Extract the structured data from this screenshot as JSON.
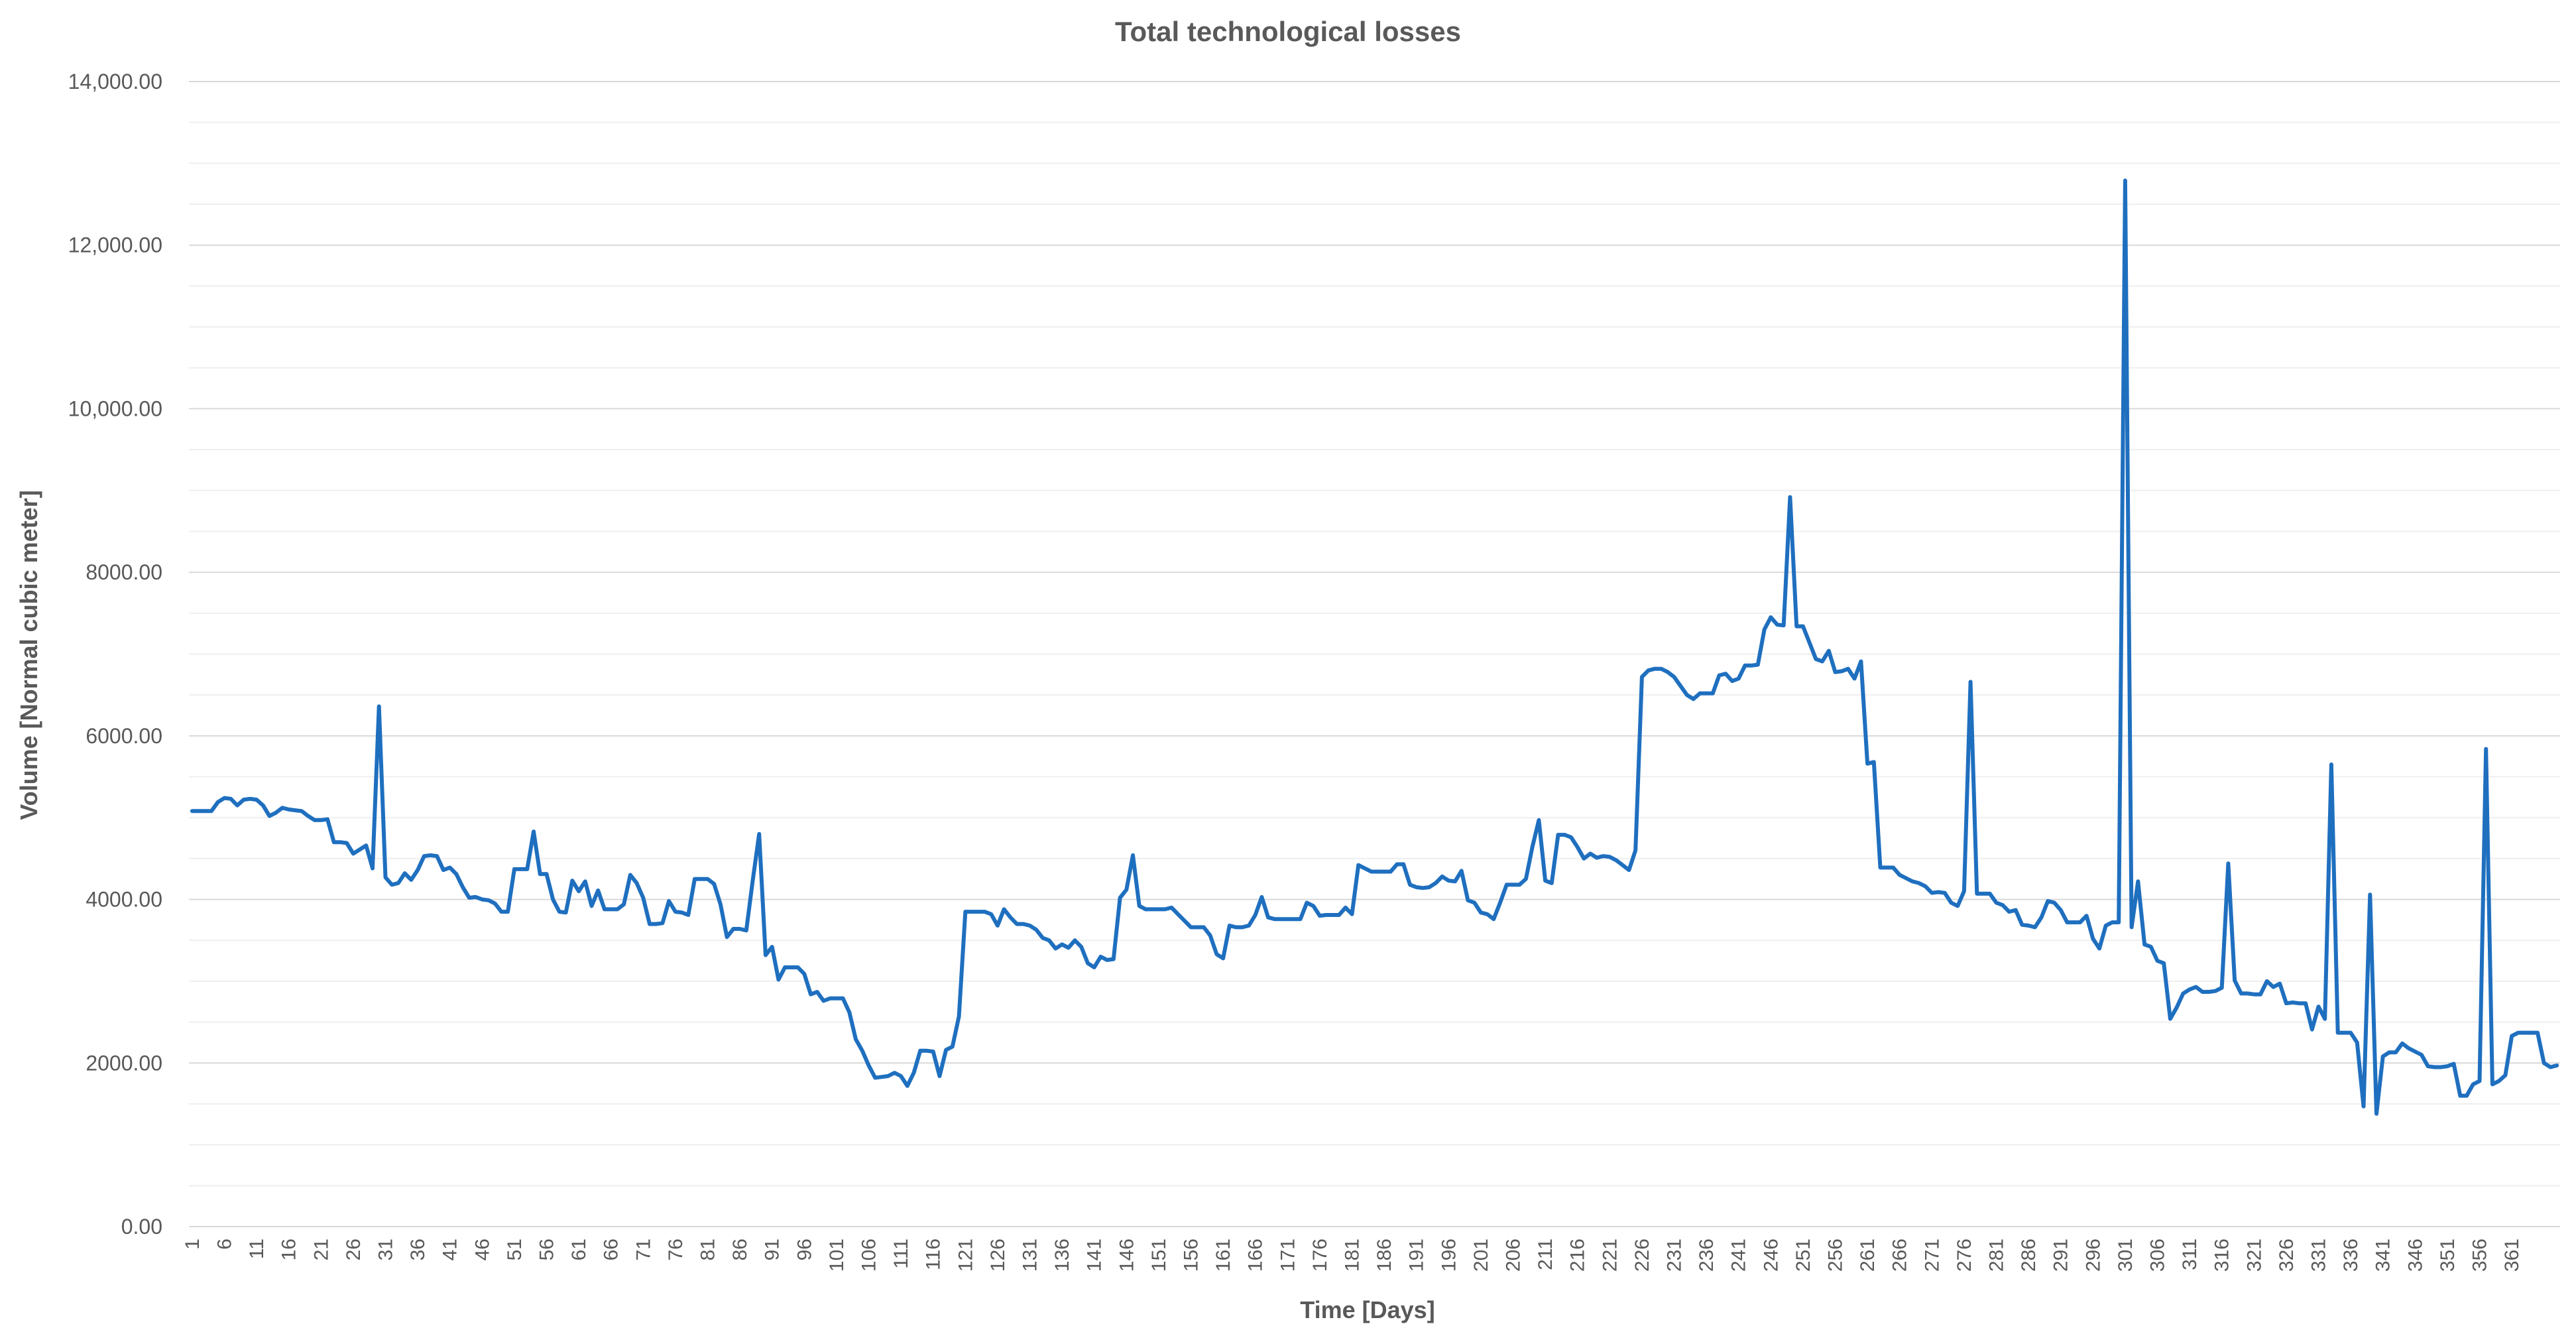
{
  "chart_data": {
    "type": "line",
    "title": "Total technological losses",
    "xlabel": "Time  [Days]",
    "ylabel": "Volume  [Normal cubic meter]",
    "ylim": [
      0,
      14000
    ],
    "grid": true,
    "legend": "none",
    "series_color": "#1f6fbf",
    "y_ticks": [
      "0.00",
      "2000.00",
      "4000.00",
      "6000.00",
      "8000.00",
      "10,000.00",
      "12,000.00",
      "14,000.00"
    ],
    "x_ticks": [
      "1",
      "6",
      "11",
      "16",
      "21",
      "26",
      "31",
      "36",
      "41",
      "46",
      "51",
      "56",
      "61",
      "66",
      "71",
      "76",
      "81",
      "86",
      "91",
      "96",
      "101",
      "106",
      "111",
      "116",
      "121",
      "126",
      "131",
      "136",
      "141",
      "146",
      "151",
      "156",
      "161",
      "166",
      "171",
      "176",
      "181",
      "186",
      "191",
      "196",
      "201",
      "206",
      "211",
      "216",
      "221",
      "226",
      "231",
      "236",
      "241",
      "246",
      "251",
      "256",
      "261",
      "266",
      "271",
      "276",
      "281",
      "286",
      "291",
      "296",
      "301",
      "306",
      "311",
      "316",
      "321",
      "326",
      "331",
      "336",
      "341",
      "346",
      "351",
      "356",
      "361"
    ],
    "x_first": 1,
    "series": [
      {
        "values": [
          5080,
          5080,
          5080,
          5080,
          5190,
          5240,
          5230,
          5150,
          5220,
          5230,
          5220,
          5150,
          5020,
          5060,
          5120,
          5100,
          5090,
          5080,
          5020,
          4970,
          4970,
          4980,
          4700,
          4700,
          4690,
          4560,
          4610,
          4660,
          4380,
          6360,
          4270,
          4180,
          4200,
          4320,
          4240,
          4360,
          4530,
          4540,
          4530,
          4360,
          4390,
          4310,
          4150,
          4020,
          4030,
          4000,
          3990,
          3950,
          3850,
          3850,
          4370,
          4370,
          4370,
          4830,
          4310,
          4310,
          4000,
          3850,
          3840,
          4230,
          4100,
          4220,
          3920,
          4110,
          3880,
          3880,
          3880,
          3940,
          4300,
          4200,
          4020,
          3700,
          3700,
          3710,
          3980,
          3850,
          3840,
          3810,
          4250,
          4250,
          4250,
          4190,
          3940,
          3540,
          3640,
          3640,
          3620,
          4230,
          4800,
          3320,
          3420,
          3020,
          3170,
          3170,
          3170,
          3090,
          2840,
          2870,
          2760,
          2790,
          2790,
          2790,
          2620,
          2290,
          2150,
          1970,
          1820,
          1830,
          1840,
          1880,
          1840,
          1720,
          1880,
          2150,
          2150,
          2140,
          1840,
          2160,
          2200,
          2570,
          3850,
          3850,
          3850,
          3850,
          3820,
          3680,
          3880,
          3780,
          3700,
          3700,
          3680,
          3630,
          3530,
          3500,
          3400,
          3450,
          3410,
          3500,
          3420,
          3220,
          3170,
          3300,
          3260,
          3270,
          4020,
          4120,
          4540,
          3920,
          3880,
          3880,
          3880,
          3880,
          3900,
          3820,
          3740,
          3660,
          3660,
          3660,
          3560,
          3330,
          3280,
          3680,
          3660,
          3660,
          3680,
          3810,
          4030,
          3780,
          3760,
          3760,
          3760,
          3760,
          3760,
          3960,
          3920,
          3800,
          3810,
          3810,
          3810,
          3900,
          3820,
          4420,
          4380,
          4340,
          4340,
          4340,
          4340,
          4430,
          4430,
          4180,
          4150,
          4140,
          4150,
          4200,
          4280,
          4230,
          4220,
          4350,
          3990,
          3960,
          3840,
          3820,
          3760,
          3960,
          4180,
          4180,
          4180,
          4250,
          4640,
          4970,
          4230,
          4200,
          4790,
          4790,
          4760,
          4640,
          4500,
          4560,
          4510,
          4530,
          4520,
          4480,
          4420,
          4360,
          4600,
          6720,
          6800,
          6820,
          6820,
          6780,
          6720,
          6610,
          6500,
          6450,
          6520,
          6520,
          6520,
          6740,
          6760,
          6670,
          6700,
          6860,
          6860,
          6870,
          7300,
          7450,
          7360,
          7350,
          8920,
          7340,
          7340,
          7140,
          6940,
          6910,
          7040,
          6780,
          6790,
          6820,
          6700,
          6910,
          5660,
          5680,
          4390,
          4390,
          4390,
          4300,
          4260,
          4220,
          4200,
          4160,
          4080,
          4090,
          4080,
          3960,
          3920,
          4100,
          6660,
          4070,
          4070,
          4070,
          3960,
          3930,
          3850,
          3870,
          3690,
          3680,
          3660,
          3780,
          3980,
          3960,
          3870,
          3720,
          3720,
          3720,
          3800,
          3520,
          3400,
          3680,
          3720,
          3720,
          12790,
          3660,
          4220,
          3450,
          3420,
          3250,
          3220,
          2540,
          2680,
          2850,
          2900,
          2930,
          2870,
          2870,
          2880,
          2920,
          4440,
          3010,
          2850,
          2850,
          2840,
          2840,
          3000,
          2930,
          2970,
          2730,
          2740,
          2730,
          2730,
          2410,
          2690,
          2540,
          5650,
          2370,
          2370,
          2370,
          2250,
          1470,
          4060,
          1380,
          2080,
          2130,
          2130,
          2240,
          2180,
          2140,
          2100,
          1960,
          1950,
          1950,
          1960,
          1990,
          1600,
          1600,
          1740,
          1780,
          5840,
          1740,
          1780,
          1850,
          2330,
          2370,
          2370,
          2370,
          2370,
          2000,
          1950,
          1970
        ]
      }
    ]
  }
}
